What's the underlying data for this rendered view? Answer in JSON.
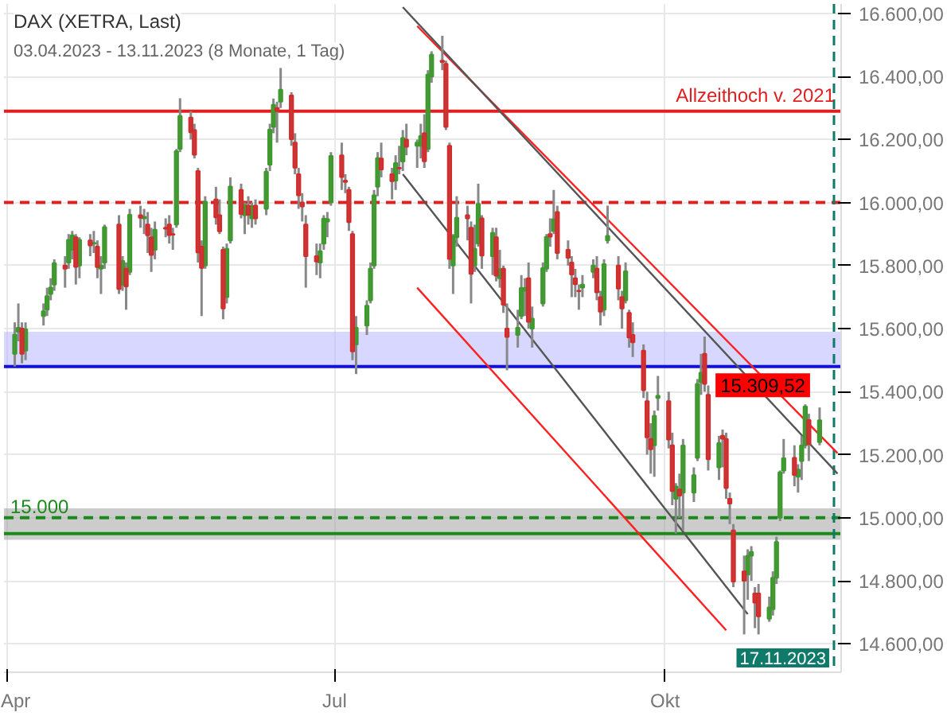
{
  "chart_data": {
    "type": "candlestick",
    "title": "DAX (XETRA, Last)",
    "subtitle": "03.04.2023 - 13.11.2023   (8 Monate, 1 Tag)",
    "x": [
      "2023-04-03",
      "2023-04-04",
      "2023-04-05",
      "2023-04-06",
      "2023-04-11",
      "2023-04-12",
      "2023-04-13",
      "2023-04-14",
      "2023-04-17",
      "2023-04-18",
      "2023-04-19",
      "2023-04-20",
      "2023-04-21",
      "2023-04-24",
      "2023-04-25",
      "2023-04-26",
      "2023-04-27",
      "2023-04-28",
      "2023-05-02",
      "2023-05-03",
      "2023-05-04",
      "2023-05-05",
      "2023-05-08",
      "2023-05-09",
      "2023-05-10",
      "2023-05-11",
      "2023-05-12",
      "2023-05-15",
      "2023-05-16",
      "2023-05-17",
      "2023-05-18",
      "2023-05-19",
      "2023-05-22",
      "2023-05-23",
      "2023-05-24",
      "2023-05-25",
      "2023-05-26",
      "2023-05-29",
      "2023-05-30",
      "2023-05-31",
      "2023-06-01",
      "2023-06-02",
      "2023-06-05",
      "2023-06-06",
      "2023-06-07",
      "2023-06-08",
      "2023-06-09",
      "2023-06-12",
      "2023-06-13",
      "2023-06-14",
      "2023-06-15",
      "2023-06-16",
      "2023-06-19",
      "2023-06-20",
      "2023-06-21",
      "2023-06-22",
      "2023-06-23",
      "2023-06-26",
      "2023-06-27",
      "2023-06-28",
      "2023-06-29",
      "2023-06-30",
      "2023-07-03",
      "2023-07-04",
      "2023-07-05",
      "2023-07-06",
      "2023-07-07",
      "2023-07-10",
      "2023-07-11",
      "2023-07-12",
      "2023-07-13",
      "2023-07-14",
      "2023-07-17",
      "2023-07-18",
      "2023-07-19",
      "2023-07-20",
      "2023-07-21",
      "2023-07-24",
      "2023-07-25",
      "2023-07-26",
      "2023-07-27",
      "2023-07-28",
      "2023-07-31",
      "2023-08-01",
      "2023-08-02",
      "2023-08-03",
      "2023-08-04",
      "2023-08-07",
      "2023-08-08",
      "2023-08-09",
      "2023-08-10",
      "2023-08-11",
      "2023-08-14",
      "2023-08-15",
      "2023-08-16",
      "2023-08-17",
      "2023-08-18",
      "2023-08-21",
      "2023-08-22",
      "2023-08-23",
      "2023-08-24",
      "2023-08-25",
      "2023-08-28",
      "2023-08-29",
      "2023-08-30",
      "2023-08-31",
      "2023-09-01",
      "2023-09-04",
      "2023-09-05",
      "2023-09-06",
      "2023-09-07",
      "2023-09-08",
      "2023-09-11",
      "2023-09-12",
      "2023-09-13",
      "2023-09-14",
      "2023-09-15",
      "2023-09-18",
      "2023-09-19",
      "2023-09-20",
      "2023-09-21",
      "2023-09-22",
      "2023-09-25",
      "2023-09-26",
      "2023-09-27",
      "2023-09-28",
      "2023-09-29",
      "2023-10-02",
      "2023-10-03",
      "2023-10-04",
      "2023-10-05",
      "2023-10-06",
      "2023-10-09",
      "2023-10-10",
      "2023-10-11",
      "2023-10-12",
      "2023-10-13",
      "2023-10-16",
      "2023-10-17",
      "2023-10-18",
      "2023-10-19",
      "2023-10-20",
      "2023-10-23",
      "2023-10-24",
      "2023-10-25",
      "2023-10-26",
      "2023-10-27",
      "2023-10-30",
      "2023-10-31",
      "2023-11-01",
      "2023-11-02",
      "2023-11-03",
      "2023-11-06",
      "2023-11-07",
      "2023-11-08",
      "2023-11-09",
      "2023-11-10",
      "2023-11-13"
    ],
    "ohlc": [
      [
        15520,
        15620,
        15480,
        15581
      ],
      [
        15590,
        15680,
        15560,
        15603
      ],
      [
        15600,
        15620,
        15490,
        15520
      ],
      [
        15530,
        15620,
        15500,
        15598
      ],
      [
        15640,
        15680,
        15610,
        15655
      ],
      [
        15660,
        15730,
        15640,
        15703
      ],
      [
        15710,
        15760,
        15690,
        15730
      ],
      [
        15740,
        15820,
        15720,
        15808
      ],
      [
        15800,
        15830,
        15730,
        15790
      ],
      [
        15810,
        15900,
        15790,
        15882
      ],
      [
        15850,
        15910,
        15820,
        15896
      ],
      [
        15890,
        15900,
        15740,
        15796
      ],
      [
        15800,
        15890,
        15760,
        15882
      ],
      [
        15880,
        15900,
        15830,
        15864
      ],
      [
        15870,
        15910,
        15840,
        15872
      ],
      [
        15860,
        15880,
        15760,
        15795
      ],
      [
        15790,
        15830,
        15710,
        15800
      ],
      [
        15810,
        15930,
        15790,
        15922
      ],
      [
        15930,
        15960,
        15710,
        15726
      ],
      [
        15740,
        15830,
        15720,
        15815
      ],
      [
        15790,
        15810,
        15660,
        15734
      ],
      [
        15780,
        15980,
        15770,
        15961
      ],
      [
        15960,
        15990,
        15920,
        15952
      ],
      [
        15950,
        15980,
        15900,
        15955
      ],
      [
        15930,
        15970,
        15840,
        15896
      ],
      [
        15890,
        15920,
        15780,
        15834
      ],
      [
        15850,
        15940,
        15820,
        15914
      ],
      [
        15920,
        15950,
        15890,
        15917
      ],
      [
        15930,
        15960,
        15870,
        15897
      ],
      [
        15900,
        15920,
        15850,
        15898
      ],
      [
        15930,
        16170,
        15920,
        16163
      ],
      [
        16170,
        16331,
        16160,
        16275
      ],
      [
        16270,
        16290,
        16200,
        16223
      ],
      [
        16230,
        16250,
        16140,
        16152
      ],
      [
        16100,
        16110,
        15810,
        15842
      ],
      [
        15860,
        15880,
        15640,
        15793
      ],
      [
        15800,
        16020,
        15790,
        16003
      ],
      [
        16010,
        16050,
        15930,
        15953
      ],
      [
        15960,
        16010,
        15900,
        15909
      ],
      [
        15850,
        15860,
        15630,
        15664
      ],
      [
        15700,
        15870,
        15680,
        15853
      ],
      [
        15880,
        16080,
        15870,
        16051
      ],
      [
        16040,
        16060,
        15950,
        15964
      ],
      [
        15960,
        16000,
        15900,
        15992
      ],
      [
        15990,
        16020,
        15930,
        15961
      ],
      [
        15950,
        16000,
        15920,
        15989
      ],
      [
        15990,
        16010,
        15930,
        15950
      ],
      [
        15980,
        16110,
        15960,
        16098
      ],
      [
        16120,
        16250,
        16100,
        16231
      ],
      [
        16240,
        16330,
        16220,
        16310
      ],
      [
        16300,
        16320,
        16190,
        16290
      ],
      [
        16320,
        16427,
        16300,
        16358
      ],
      [
        16340,
        16350,
        16180,
        16201
      ],
      [
        16190,
        16220,
        16090,
        16111
      ],
      [
        16090,
        16110,
        15980,
        16023
      ],
      [
        16000,
        16030,
        15940,
        15988
      ],
      [
        15930,
        15960,
        15730,
        15830
      ],
      [
        15830,
        15870,
        15770,
        15813
      ],
      [
        15810,
        15870,
        15760,
        15846
      ],
      [
        15870,
        15960,
        15850,
        15949
      ],
      [
        15940,
        15970,
        15890,
        15947
      ],
      [
        16000,
        16160,
        15990,
        16148
      ],
      [
        16150,
        16190,
        16040,
        16081
      ],
      [
        16070,
        16090,
        16030,
        16065
      ],
      [
        16040,
        16050,
        15910,
        15938
      ],
      [
        15900,
        15910,
        15500,
        15528
      ],
      [
        15550,
        15640,
        15456,
        15603
      ],
      [
        15610,
        15690,
        15580,
        15673
      ],
      [
        15690,
        15810,
        15680,
        15790
      ],
      [
        15800,
        16040,
        15790,
        16023
      ],
      [
        16050,
        16160,
        16020,
        16141
      ],
      [
        16140,
        16190,
        16080,
        16105
      ],
      [
        16090,
        16110,
        16010,
        16068
      ],
      [
        16070,
        16150,
        16040,
        16125
      ],
      [
        16110,
        16180,
        16090,
        16108
      ],
      [
        16130,
        16230,
        16100,
        16205
      ],
      [
        16200,
        16250,
        16150,
        16177
      ],
      [
        16180,
        16200,
        16110,
        16190
      ],
      [
        16180,
        16250,
        16140,
        16211
      ],
      [
        16220,
        16280,
        16110,
        16131
      ],
      [
        16170,
        16420,
        16160,
        16406
      ],
      [
        16400,
        16480,
        16380,
        16469
      ],
      [
        16450,
        16529,
        16420,
        16446
      ],
      [
        16440,
        16450,
        16230,
        16240
      ],
      [
        16180,
        16190,
        15790,
        15821
      ],
      [
        15800,
        15900,
        15710,
        15893
      ],
      [
        15890,
        16020,
        15860,
        15952
      ],
      [
        15960,
        15990,
        15880,
        15950
      ],
      [
        15920,
        15940,
        15680,
        15774
      ],
      [
        15800,
        15930,
        15780,
        15853
      ],
      [
        15870,
        16060,
        15860,
        15996
      ],
      [
        15950,
        15960,
        15790,
        15832
      ],
      [
        15830,
        15920,
        15770,
        15904
      ],
      [
        15890,
        15920,
        15750,
        15768
      ],
      [
        15760,
        15850,
        15730,
        15789
      ],
      [
        15790,
        15800,
        15650,
        15676
      ],
      [
        15600,
        15680,
        15468,
        15574
      ],
      [
        15580,
        15660,
        15540,
        15603
      ],
      [
        15640,
        15770,
        15630,
        15729
      ],
      [
        15720,
        15760,
        15640,
        15729
      ],
      [
        15760,
        15810,
        15600,
        15622
      ],
      [
        15600,
        15670,
        15540,
        15632
      ],
      [
        15680,
        15810,
        15670,
        15792
      ],
      [
        15790,
        15900,
        15780,
        15891
      ],
      [
        15900,
        15950,
        15860,
        15892
      ],
      [
        15910,
        16040,
        15900,
        15947
      ],
      [
        15970,
        15990,
        15820,
        15840
      ],
      [
        15850,
        15880,
        15800,
        15825
      ],
      [
        15810,
        15830,
        15700,
        15772
      ],
      [
        15760,
        15790,
        15700,
        15741
      ],
      [
        15720,
        15740,
        15660,
        15719
      ],
      [
        15730,
        15770,
        15700,
        15740
      ],
      [
        15780,
        15820,
        15760,
        15800
      ],
      [
        15790,
        15830,
        15690,
        15715
      ],
      [
        15700,
        15720,
        15610,
        15654
      ],
      [
        15660,
        15820,
        15640,
        15805
      ],
      [
        15880,
        15990,
        15870,
        15894
      ],
      [
        15800,
        15830,
        15690,
        15727
      ],
      [
        15700,
        15720,
        15600,
        15664
      ],
      [
        15690,
        15810,
        15680,
        15782
      ],
      [
        15650,
        15660,
        15540,
        15572
      ],
      [
        15580,
        15620,
        15510,
        15557
      ],
      [
        15530,
        15550,
        15380,
        15405
      ],
      [
        15370,
        15400,
        15200,
        15255
      ],
      [
        15250,
        15300,
        15140,
        15217
      ],
      [
        15230,
        15340,
        15130,
        15323
      ],
      [
        15380,
        15450,
        15340,
        15387
      ],
      [
        15370,
        15400,
        15220,
        15248
      ],
      [
        15230,
        15270,
        15040,
        15085
      ],
      [
        15060,
        15110,
        14950,
        15099
      ],
      [
        15090,
        15140,
        15000,
        15070
      ],
      [
        15080,
        15250,
        14960,
        15229
      ],
      [
        15080,
        15160,
        15050,
        15135
      ],
      [
        15190,
        15440,
        15180,
        15424
      ],
      [
        15430,
        15520,
        15390,
        15460
      ],
      [
        15520,
        15575,
        15400,
        15425
      ],
      [
        15390,
        15420,
        15150,
        15186
      ],
      [
        15160,
        15260,
        15120,
        15237
      ],
      [
        15260,
        15280,
        15160,
        15251
      ],
      [
        15250,
        15270,
        15060,
        15094
      ],
      [
        15060,
        15080,
        14980,
        15045
      ],
      [
        14960,
        14980,
        14780,
        14798
      ],
      [
        14830,
        14880,
        14630,
        14800
      ],
      [
        14820,
        14900,
        14740,
        14879
      ],
      [
        14880,
        14910,
        14800,
        14892
      ],
      [
        14760,
        14780,
        14650,
        14731
      ],
      [
        14760,
        14790,
        14630,
        14687
      ],
      [
        14680,
        14750,
        14670,
        14716
      ],
      [
        14710,
        14830,
        14690,
        14810
      ],
      [
        14810,
        14940,
        14790,
        14923
      ],
      [
        15000,
        15150,
        14990,
        15144
      ],
      [
        15150,
        15250,
        15140,
        15189
      ],
      [
        15190,
        15230,
        15100,
        15136
      ],
      [
        15130,
        15170,
        15080,
        15153
      ],
      [
        15180,
        15260,
        15120,
        15229
      ],
      [
        15230,
        15360,
        15220,
        15353
      ],
      [
        15310,
        15330,
        15180,
        15234
      ],
      [
        15240,
        15350,
        15230,
        15309.52
      ]
    ],
    "series": [
      {
        "type": "line",
        "color": "#ff2020",
        "x": [
          "2023-07-24",
          "2023-11-18"
        ],
        "values": [
          16560,
          15205
        ]
      },
      {
        "type": "line",
        "color": "#ff2020",
        "x": [
          "2023-07-24",
          "2023-10-18"
        ],
        "values": [
          15730,
          14643
        ]
      },
      {
        "type": "line",
        "color": "#555555",
        "x": [
          "2023-07-20",
          "2023-11-18"
        ],
        "values": [
          16620,
          15140
        ]
      },
      {
        "type": "line",
        "color": "#555555",
        "x": [
          "2023-07-20",
          "2023-10-24"
        ],
        "values": [
          16090,
          14694
        ]
      }
    ],
    "xlim": [
      "2023-03-31",
      "2023-11-19"
    ],
    "xticks": [
      {
        "value": "2023-04-01",
        "label": "Apr"
      },
      {
        "value": "2023-07-01",
        "label": "Jul"
      },
      {
        "value": "2023-10-01",
        "label": "Okt"
      }
    ],
    "ylim": [
      14510,
      16630
    ],
    "yticks": [
      {
        "value": 14600,
        "label": "14.600,00"
      },
      {
        "value": 14800,
        "label": "14.800,00"
      },
      {
        "value": 15000,
        "label": "15.000,00"
      },
      {
        "value": 15200,
        "label": "15.200,00"
      },
      {
        "value": 15400,
        "label": "15.400,00"
      },
      {
        "value": 15600,
        "label": "15.600,00"
      },
      {
        "value": 15800,
        "label": "15.800,00"
      },
      {
        "value": 16000,
        "label": "16.000,00"
      },
      {
        "value": 16200,
        "label": "16.200,00"
      },
      {
        "value": 16400,
        "label": "16.400,00"
      },
      {
        "value": 16600,
        "label": "16.600,00"
      }
    ],
    "ref_lines": [
      {
        "axis": "y",
        "value": 16290,
        "label": "Allzeithoch v. 2021",
        "color": "#e02020",
        "line_style": "solid"
      },
      {
        "axis": "y",
        "value": 16000,
        "label": null,
        "color": "#e02020",
        "line_style": "dashed"
      },
      {
        "axis": "y",
        "value": 15480,
        "label": null,
        "color": "#1010e0",
        "line_style": "solid"
      },
      {
        "axis": "y",
        "value": 15000,
        "label": "15.000",
        "color": "#1a8a1a",
        "line_style": "dashed"
      },
      {
        "axis": "y",
        "value": 14950,
        "label": null,
        "color": "#1a8a1a",
        "line_style": "solid"
      },
      {
        "axis": "x",
        "value": "2023-11-17",
        "label": "17.11.2023",
        "color": "#0f7a6a",
        "line_style": "dashed"
      }
    ],
    "bands": [
      {
        "axis": "y",
        "from": 15480,
        "to": 15590,
        "label": null,
        "color": "#b0b0ff"
      },
      {
        "axis": "y",
        "from": 14930,
        "to": 15030,
        "label": null,
        "color": "#999999"
      }
    ],
    "annotations": [
      {
        "text": "15.309,52",
        "x": "2023-11-13",
        "y": 15309.52
      }
    ],
    "grid": true
  }
}
